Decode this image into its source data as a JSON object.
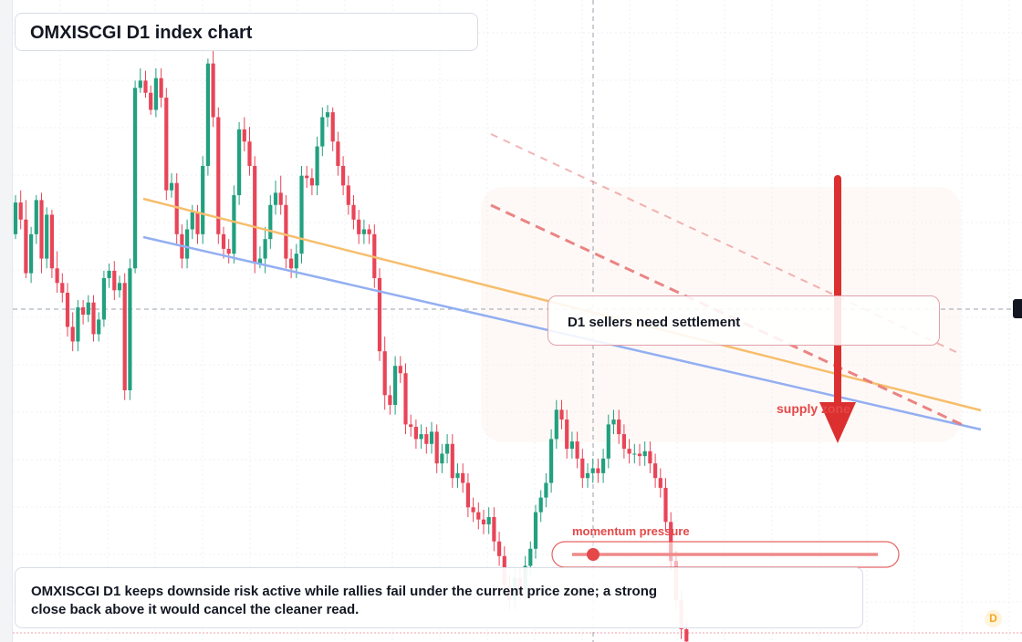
{
  "title": "OMXISCGI D1 index chart",
  "callout": "D1 sellers need settlement",
  "note": "OMXISCGI D1 keeps downside risk active while rallies fail under the current price zone; a strong close back above it would cancel the cleaner read.",
  "labels": {
    "supply": "supply zone",
    "momentum": "momentum pressure",
    "timeframe_badge": "D"
  },
  "colors": {
    "up": "#22a07f",
    "down": "#e84558",
    "trend_orange": "#f6be6d",
    "trend_blue": "#93aff2",
    "resistance": "#e87878",
    "arrow": "#dc2f2f",
    "annotation_red": "#e44848"
  },
  "chart_data": {
    "type": "candlestick",
    "symbol": "OMXISCGI",
    "timeframe": "D1",
    "grid": true,
    "y_axis": "hidden",
    "x_axis": "hidden",
    "legend": "none",
    "ohlc": [
      [
        262,
        275,
        260,
        278
      ],
      [
        275,
        268,
        264,
        280
      ],
      [
        268,
        246,
        244,
        276
      ],
      [
        246,
        262,
        242,
        265
      ],
      [
        262,
        276,
        258,
        278
      ],
      [
        276,
        252,
        246,
        279
      ],
      [
        252,
        270,
        248,
        273
      ],
      [
        270,
        248,
        244,
        272
      ],
      [
        248,
        242,
        238,
        255
      ],
      [
        242,
        238,
        234,
        246
      ],
      [
        238,
        224,
        220,
        242
      ],
      [
        224,
        218,
        214,
        230
      ],
      [
        218,
        232,
        214,
        235
      ],
      [
        232,
        229,
        225,
        235
      ],
      [
        229,
        234,
        226,
        237
      ],
      [
        234,
        221,
        218,
        237
      ],
      [
        221,
        227,
        218,
        230
      ],
      [
        227,
        244,
        224,
        247
      ],
      [
        244,
        247,
        240,
        250
      ],
      [
        247,
        239,
        235,
        251
      ],
      [
        239,
        242,
        236,
        245
      ],
      [
        242,
        198,
        194,
        246
      ],
      [
        198,
        248,
        194,
        252
      ],
      [
        248,
        322,
        246,
        325
      ],
      [
        322,
        325,
        320,
        330
      ],
      [
        325,
        320,
        318,
        329
      ],
      [
        320,
        313,
        311,
        323
      ],
      [
        313,
        326,
        310,
        330
      ],
      [
        326,
        318,
        314,
        330
      ],
      [
        318,
        280,
        276,
        322
      ],
      [
        280,
        283,
        277,
        287
      ],
      [
        283,
        262,
        258,
        287
      ],
      [
        262,
        252,
        248,
        266
      ],
      [
        252,
        264,
        248,
        268
      ],
      [
        264,
        271,
        260,
        274
      ],
      [
        271,
        262,
        258,
        274
      ],
      [
        262,
        290,
        258,
        294
      ],
      [
        290,
        332,
        286,
        334
      ],
      [
        332,
        310,
        306,
        338
      ],
      [
        310,
        262,
        258,
        314
      ],
      [
        262,
        256,
        252,
        265
      ],
      [
        256,
        254,
        250,
        260
      ],
      [
        254,
        278,
        250,
        282
      ],
      [
        278,
        305,
        274,
        308
      ],
      [
        305,
        300,
        296,
        310
      ],
      [
        300,
        290,
        286,
        306
      ],
      [
        290,
        250,
        246,
        294
      ],
      [
        250,
        252,
        248,
        257
      ],
      [
        252,
        260,
        246,
        265
      ],
      [
        260,
        274,
        256,
        278
      ],
      [
        274,
        279,
        270,
        284
      ],
      [
        279,
        274,
        270,
        286
      ],
      [
        274,
        252,
        248,
        278
      ],
      [
        252,
        248,
        244,
        256
      ],
      [
        248,
        254,
        244,
        258
      ],
      [
        254,
        286,
        250,
        290
      ],
      [
        286,
        285,
        281,
        290
      ],
      [
        285,
        282,
        278,
        289
      ],
      [
        282,
        298,
        278,
        302
      ],
      [
        298,
        310,
        294,
        314
      ],
      [
        310,
        312,
        306,
        315
      ],
      [
        312,
        300,
        296,
        314
      ],
      [
        300,
        290,
        286,
        304
      ],
      [
        290,
        282,
        278,
        294
      ],
      [
        282,
        274,
        270,
        286
      ],
      [
        274,
        268,
        264,
        278
      ],
      [
        268,
        262,
        258,
        272
      ],
      [
        262,
        264,
        258,
        268
      ],
      [
        264,
        262,
        258,
        266
      ],
      [
        262,
        244,
        240,
        266
      ],
      [
        244,
        214,
        210,
        248
      ],
      [
        214,
        196,
        190,
        220
      ],
      [
        196,
        192,
        188,
        200
      ],
      [
        192,
        208,
        188,
        212
      ],
      [
        208,
        205,
        201,
        212
      ],
      [
        205,
        184,
        180,
        209
      ],
      [
        184,
        183,
        179,
        188
      ],
      [
        183,
        178,
        174,
        186
      ],
      [
        178,
        180,
        174,
        184
      ],
      [
        180,
        176,
        172,
        183
      ],
      [
        176,
        181,
        172,
        185
      ],
      [
        181,
        168,
        164,
        184
      ],
      [
        168,
        172,
        164,
        176
      ],
      [
        172,
        176,
        168,
        180
      ],
      [
        176,
        162,
        158,
        180
      ],
      [
        162,
        164,
        158,
        168
      ],
      [
        164,
        160,
        156,
        168
      ],
      [
        160,
        150,
        146,
        164
      ],
      [
        150,
        148,
        144,
        154
      ],
      [
        148,
        145,
        141,
        152
      ],
      [
        145,
        143,
        139,
        149
      ],
      [
        143,
        146,
        139,
        150
      ],
      [
        146,
        136,
        132,
        150
      ],
      [
        136,
        130,
        126,
        140
      ],
      [
        130,
        118,
        114,
        134
      ],
      [
        118,
        112,
        108,
        122
      ],
      [
        112,
        121,
        108,
        125
      ],
      [
        121,
        116,
        112,
        125
      ],
      [
        116,
        126,
        112,
        130
      ],
      [
        126,
        133,
        122,
        136
      ],
      [
        133,
        148,
        129,
        151
      ],
      [
        148,
        154,
        144,
        157
      ],
      [
        154,
        160,
        150,
        164
      ],
      [
        160,
        178,
        156,
        182
      ],
      [
        178,
        190,
        174,
        194
      ],
      [
        190,
        186,
        182,
        194
      ],
      [
        186,
        174,
        170,
        190
      ],
      [
        174,
        177,
        170,
        181
      ],
      [
        177,
        170,
        166,
        181
      ],
      [
        170,
        162,
        158,
        174
      ],
      [
        162,
        164,
        158,
        168
      ],
      [
        164,
        166,
        160,
        170
      ],
      [
        166,
        164,
        160,
        170
      ],
      [
        164,
        170,
        160,
        174
      ],
      [
        170,
        184,
        166,
        188
      ],
      [
        184,
        186,
        180,
        190
      ],
      [
        186,
        180,
        176,
        190
      ],
      [
        180,
        174,
        170,
        184
      ],
      [
        174,
        172,
        168,
        178
      ],
      [
        172,
        172,
        168,
        176
      ],
      [
        172,
        171,
        167,
        176
      ],
      [
        171,
        173,
        167,
        177
      ],
      [
        173,
        168,
        164,
        177
      ],
      [
        168,
        162,
        158,
        172
      ],
      [
        162,
        158,
        154,
        166
      ],
      [
        158,
        144,
        140,
        162
      ],
      [
        144,
        128,
        124,
        148
      ],
      [
        128,
        112,
        108,
        132
      ],
      [
        112,
        100,
        96,
        116
      ],
      [
        100,
        95,
        90,
        104
      ]
    ],
    "trendlines": [
      {
        "name": "",
        "color": "orange"
      },
      {
        "name": "",
        "color": "blue"
      },
      {
        "name": "",
        "color": "resistance",
        "style": "dashed"
      },
      {
        "name": "",
        "color": "resistance-light",
        "style": "dashed"
      }
    ]
  }
}
